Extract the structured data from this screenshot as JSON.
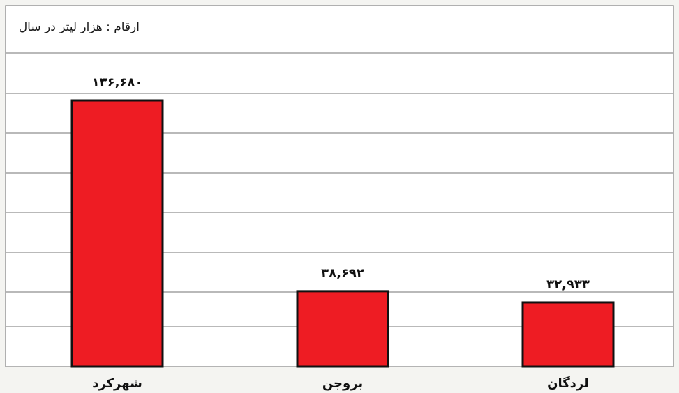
{
  "chart_data": {
    "type": "bar",
    "unit_label": "ارقام : هزار لیتر در سال",
    "categories": [
      "شهرکرد",
      "بروجن",
      "لردگان"
    ],
    "values": [
      136680,
      38692,
      32933
    ],
    "value_labels": [
      "۱۳۶,۶۸۰",
      "۳۸,۶۹۲",
      "۳۲,۹۳۳"
    ],
    "ylim": [
      0,
      160000
    ],
    "grid": true,
    "bar_color": "#ee1c23",
    "bar_border_color": "#111111",
    "grid_color": "#b9b9b9"
  }
}
